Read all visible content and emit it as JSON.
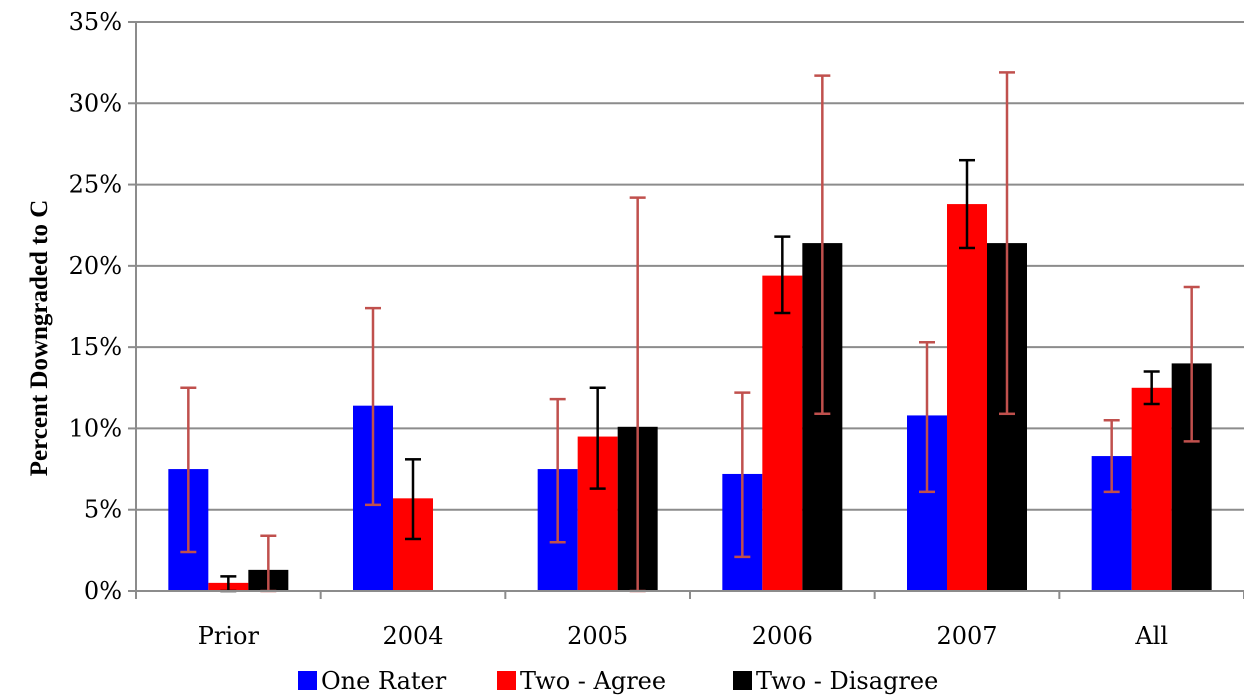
{
  "chart_data": {
    "type": "bar",
    "title": "",
    "xlabel": "",
    "ylabel": "Percent Downgraded  to C",
    "ylim": [
      0,
      35
    ],
    "y_ticks": [
      "0%",
      "5%",
      "10%",
      "15%",
      "20%",
      "25%",
      "30%",
      "35%"
    ],
    "y_tick_values": [
      0,
      5,
      10,
      15,
      20,
      25,
      30,
      35
    ],
    "grid": true,
    "legend_position": "bottom",
    "categories": [
      "Prior",
      "2004",
      "2005",
      "2006",
      "2007",
      "All"
    ],
    "series": [
      {
        "name": "One Rater",
        "color": "#0000ff",
        "errorbar_color": "#c0504d",
        "values": [
          7.5,
          11.4,
          7.5,
          7.2,
          10.8,
          8.3
        ],
        "error_low": [
          2.4,
          5.3,
          3.0,
          2.1,
          6.1,
          6.1
        ],
        "error_high": [
          12.5,
          17.4,
          11.8,
          12.2,
          15.3,
          10.5
        ]
      },
      {
        "name": "Two - Agree",
        "color": "#ff0000",
        "errorbar_color": "#000000",
        "values": [
          0.5,
          5.7,
          9.5,
          19.4,
          23.8,
          12.5
        ],
        "error_low": [
          0.0,
          3.2,
          6.3,
          17.1,
          21.1,
          11.5
        ],
        "error_high": [
          0.9,
          8.1,
          12.5,
          21.8,
          26.5,
          13.5
        ]
      },
      {
        "name": "Two - Disagree",
        "color": "#000000",
        "errorbar_color": "#c0504d",
        "values": [
          1.3,
          0.0,
          10.1,
          21.4,
          21.4,
          14.0
        ],
        "error_low": [
          0.0,
          0.0,
          0.0,
          10.9,
          10.9,
          9.2
        ],
        "error_high": [
          3.4,
          0.0,
          24.2,
          31.7,
          31.9,
          18.7
        ]
      }
    ]
  }
}
